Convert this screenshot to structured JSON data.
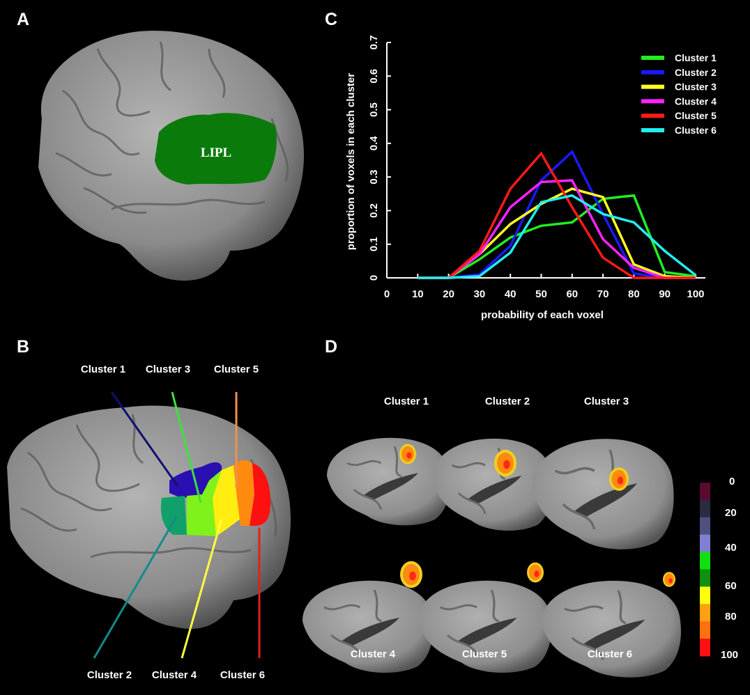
{
  "panels": {
    "a": "A",
    "b": "B",
    "c": "C",
    "d": "D"
  },
  "panel_a": {
    "region_label": "LIPL",
    "region_color": "#0a7a0a"
  },
  "panel_b": {
    "top_labels": [
      "Cluster 1",
      "Cluster 3",
      "Cluster 5"
    ],
    "bottom_labels": [
      "Cluster 2",
      "Cluster 4",
      "Cluster 6"
    ],
    "cluster_colors": {
      "1": "#2a10b0",
      "2": "#11a06a",
      "3": "#7ef21a",
      "4": "#ffee10",
      "5": "#ff8a10",
      "6": "#ff1010"
    },
    "pointer_colors": {
      "1": "#101070",
      "2": "#138a8a",
      "3": "#40e040",
      "4": "#ffff40",
      "5": "#f09050",
      "6": "#e02020"
    }
  },
  "panel_d": {
    "top_labels": [
      "Cluster 1",
      "Cluster 2",
      "Cluster 3"
    ],
    "bottom_labels": [
      "Cluster 4",
      "Cluster 5",
      "Cluster 6"
    ],
    "colorbar_ticks": [
      "0",
      "20",
      "40",
      "60",
      "80",
      "100"
    ],
    "colorbar_colors": [
      "#5a0a30",
      "#2a2a40",
      "#505080",
      "#8080d0",
      "#10e010",
      "#109010",
      "#ffff10",
      "#ffa010",
      "#ff7010",
      "#ff1010"
    ]
  },
  "chart_data": {
    "type": "line",
    "title": "",
    "xlabel": "probability of each voxel",
    "ylabel": "proportion of voxels in each cluster",
    "xlim": [
      0,
      100
    ],
    "ylim": [
      0,
      0.7
    ],
    "xticks": [
      "0",
      "10",
      "20",
      "30",
      "40",
      "50",
      "60",
      "70",
      "80",
      "90",
      "100"
    ],
    "yticks": [
      "0",
      "0.1",
      "0.2",
      "0.3",
      "0.4",
      "0.5",
      "0.6",
      "0.7"
    ],
    "grid": false,
    "legend": "top-right",
    "x": [
      10,
      20,
      30,
      40,
      50,
      60,
      70,
      80,
      90,
      100
    ],
    "series": [
      {
        "name": "Cluster 1",
        "color": "#22ee22",
        "values": [
          0,
          0,
          0.055,
          0.12,
          0.155,
          0.165,
          0.235,
          0.245,
          0.017,
          0.005
        ]
      },
      {
        "name": "Cluster 2",
        "color": "#1a1aff",
        "values": [
          0,
          0,
          0.01,
          0.095,
          0.29,
          0.375,
          0.19,
          0.013,
          0,
          0
        ]
      },
      {
        "name": "Cluster 3",
        "color": "#ffff22",
        "values": [
          0,
          0,
          0.07,
          0.16,
          0.22,
          0.265,
          0.24,
          0.04,
          0.005,
          0
        ]
      },
      {
        "name": "Cluster 4",
        "color": "#ff22ff",
        "values": [
          0,
          0,
          0.07,
          0.21,
          0.285,
          0.29,
          0.115,
          0.03,
          0,
          0
        ]
      },
      {
        "name": "Cluster 5",
        "color": "#ff1a1a",
        "values": [
          0,
          0,
          0.08,
          0.265,
          0.37,
          0.21,
          0.06,
          0,
          0,
          0
        ]
      },
      {
        "name": "Cluster 6",
        "color": "#22eeee",
        "values": [
          0,
          0,
          0.005,
          0.075,
          0.225,
          0.245,
          0.19,
          0.165,
          0.08,
          0.008
        ]
      }
    ]
  }
}
